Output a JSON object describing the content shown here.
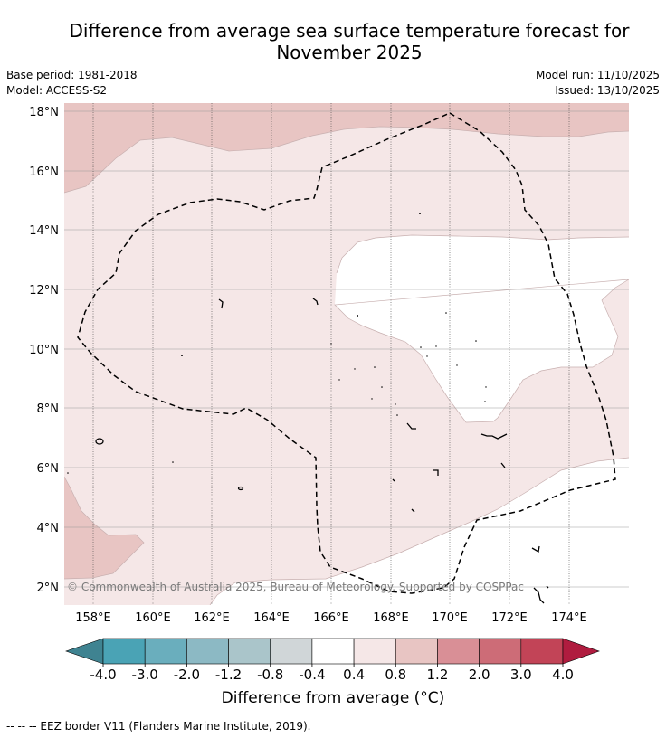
{
  "title": {
    "line1": "Difference from average sea surface temperature forecast for",
    "line2": "November 2025"
  },
  "meta": {
    "base_period": "Base period: 1981-2018",
    "model": "Model: ACCESS-S2",
    "model_run": "Model run: 11/10/2025",
    "issued": "Issued: 13/10/2025"
  },
  "map": {
    "lat_labels": [
      "18°N",
      "16°N",
      "14°N",
      "12°N",
      "10°N",
      "8°N",
      "6°N",
      "4°N",
      "2°N"
    ],
    "lon_labels": [
      "158°E",
      "160°E",
      "162°E",
      "164°E",
      "166°E",
      "168°E",
      "170°E",
      "172°E",
      "174°E"
    ],
    "copyright": "© Commonwealth of Australia 2025, Bureau of Meteorology. Supported by COSPPac"
  },
  "colorbar": {
    "ticks": [
      "-4.0",
      "-3.0",
      "-2.0",
      "-1.2",
      "-0.8",
      "-0.4",
      "0.4",
      "0.8",
      "1.2",
      "2.0",
      "3.0",
      "4.0"
    ],
    "colors": [
      "#4aa3b5",
      "#6aaebd",
      "#8cb9c4",
      "#aac5ca",
      "#d0d6d8",
      "#ffffff",
      "#f5e7e7",
      "#e8c5c3",
      "#d98f96",
      "#cd6c77",
      "#c24457"
    ],
    "under_color": "#3f8391",
    "over_color": "#b01c3f",
    "label": "Difference from average (°C)"
  },
  "legend": {
    "text": "--  --  -- EEZ border V11 (Flanders Marine Institute, 2019)."
  }
}
